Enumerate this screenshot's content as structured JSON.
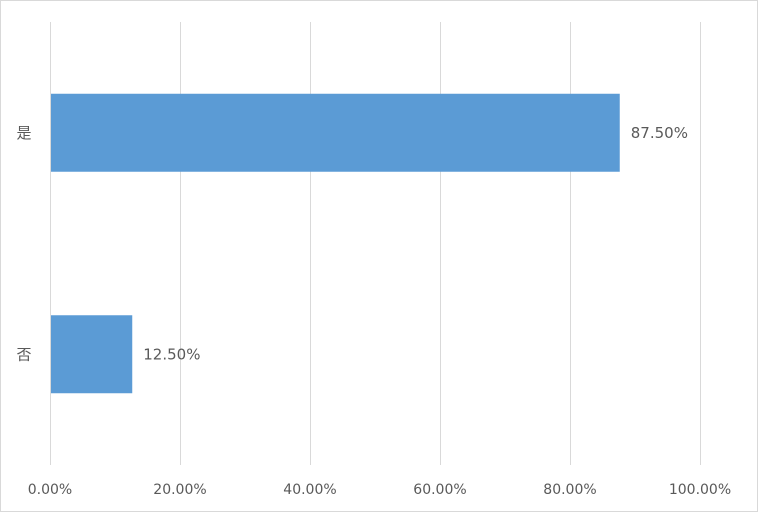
{
  "chart_data": {
    "type": "bar",
    "orientation": "horizontal",
    "categories": [
      "是",
      "否"
    ],
    "values": [
      87.5,
      12.5
    ],
    "data_labels": [
      "87.50%",
      "12.50%"
    ],
    "xlim": [
      0,
      100
    ],
    "x_ticks": [
      0,
      20,
      40,
      60,
      80,
      100
    ],
    "x_tick_labels": [
      "0.00%",
      "20.00%",
      "40.00%",
      "60.00%",
      "80.00%",
      "100.00%"
    ],
    "grid": "vertical",
    "legend": "none",
    "bar_color": "#5b9bd5",
    "grid_color": "#d9d9d9"
  }
}
